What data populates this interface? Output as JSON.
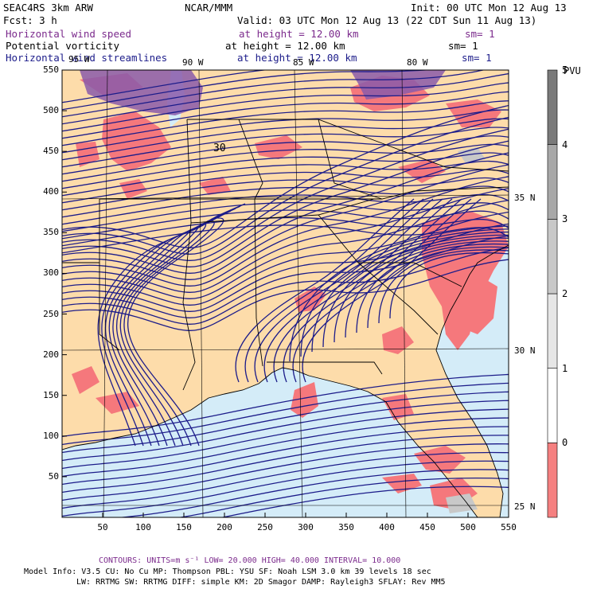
{
  "header": {
    "model": "SEAC4RS  3km ARW",
    "org": "NCAR/MMM",
    "init": "Init: 00 UTC Mon 12 Aug 13",
    "fcst": "Fcst:    3 h",
    "valid": "Valid: 03 UTC Mon 12 Aug 13 (22 CDT Sun 11 Aug 13)"
  },
  "fields": [
    {
      "name": "Horizontal wind speed",
      "height": "at height = 12.00 km",
      "sm": "sm= 1",
      "color": "#7b2a8c"
    },
    {
      "name": "Potential vorticity",
      "height": "at height = 12.00 km",
      "sm": "sm= 1",
      "color": "#000000"
    },
    {
      "name": "Horizontal wind streamlines",
      "height": "at height = 12.00 km",
      "sm": "sm= 1",
      "color": "#1c1c8a"
    }
  ],
  "map": {
    "x_ticks": [
      "50",
      "100",
      "150",
      "200",
      "250",
      "300",
      "350",
      "400",
      "450",
      "500",
      "550"
    ],
    "y_ticks": [
      "50",
      "100",
      "150",
      "200",
      "250",
      "300",
      "350",
      "400",
      "450",
      "500",
      "550"
    ],
    "lon_labels": [
      "95 W",
      "90 W",
      "85 W",
      "80 W"
    ],
    "lat_labels": [
      "35 N",
      "30 N",
      "25 N"
    ],
    "contour_label": "30"
  },
  "colorbar": {
    "unit": "PVU",
    "levels": [
      "0",
      "1",
      "2",
      "3",
      "4",
      "5"
    ],
    "colors": [
      "#f58080",
      "#ffffff",
      "#e6e6e6",
      "#c8c8c8",
      "#a8a8a8",
      "#7a7a7a"
    ]
  },
  "footer": {
    "contours": "CONTOURS:  UNITS=m s⁻¹  LOW=  20.000       HIGH=  40.000       INTERVAL=   10.000",
    "model_info1": "Model Info: V3.5      CU: No Cu     MP: Thompson    PBL: YSU       SF: Noah LSM     3.0 km   39 levels    18 sec",
    "model_info2": "LW: RRTMG    SW: RRTMG   DIFF: simple KM: 2D Smagor DAMP: Rayleigh3  SFLAY: Rev MM5"
  },
  "colors": {
    "land": "#fddcaa",
    "ocean": "#d4ecf8",
    "pv_high": "#f5787c",
    "wind_speed": "#8a5aaa",
    "streamline": "#1c1c8a",
    "border": "#000000"
  }
}
